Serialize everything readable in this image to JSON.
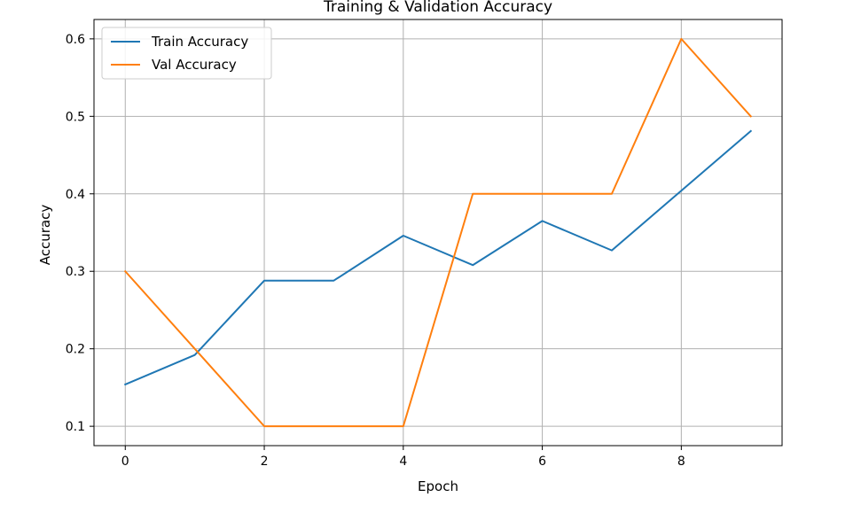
{
  "chart_data": {
    "type": "line",
    "title": "Training & Validation Accuracy",
    "xlabel": "Epoch",
    "ylabel": "Accuracy",
    "x": [
      0,
      1,
      2,
      3,
      4,
      5,
      6,
      7,
      8,
      9
    ],
    "series": [
      {
        "name": "Train Accuracy",
        "color": "#1f77b4",
        "values": [
          0.154,
          0.192,
          0.288,
          0.288,
          0.346,
          0.308,
          0.365,
          0.327,
          0.404,
          0.481
        ]
      },
      {
        "name": "Val Accuracy",
        "color": "#ff7f0e",
        "values": [
          0.3,
          0.2,
          0.1,
          0.1,
          0.1,
          0.4,
          0.4,
          0.4,
          0.6,
          0.5
        ]
      }
    ],
    "xlim": [
      -0.45,
      9.45
    ],
    "ylim": [
      0.075,
      0.625
    ],
    "xticks": [
      0,
      2,
      4,
      6,
      8
    ],
    "xtick_labels": [
      "0",
      "2",
      "4",
      "6",
      "8"
    ],
    "yticks": [
      0.1,
      0.2,
      0.3,
      0.4,
      0.5,
      0.6
    ],
    "ytick_labels": [
      "0.1",
      "0.2",
      "0.3",
      "0.4",
      "0.5",
      "0.6"
    ],
    "grid": true,
    "legend_position": "top-left"
  }
}
